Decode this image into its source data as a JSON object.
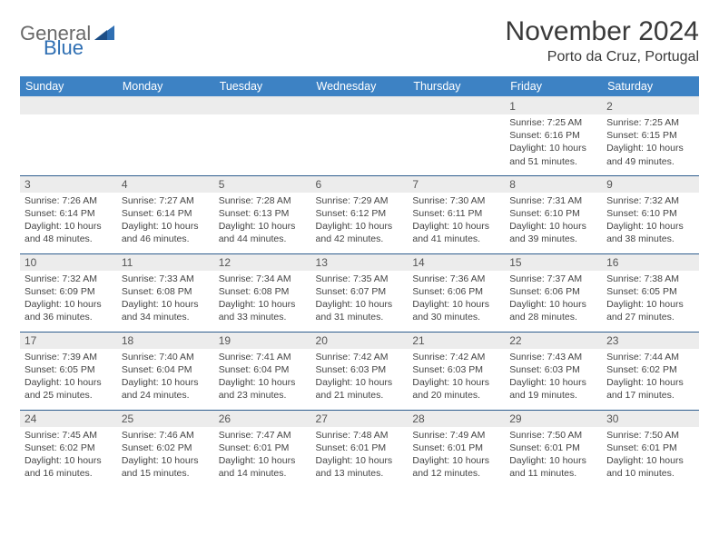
{
  "brand": {
    "part1": "General",
    "part2": "Blue"
  },
  "title": "November 2024",
  "location": "Porto da Cruz, Portugal",
  "colors": {
    "header_bg": "#3d82c4",
    "header_text": "#ffffff",
    "daynum_bg": "#ececec",
    "row_border": "#2f5e8f",
    "brand_gray": "#6a6a6a",
    "brand_blue": "#2f6fb3"
  },
  "weekdays": [
    "Sunday",
    "Monday",
    "Tuesday",
    "Wednesday",
    "Thursday",
    "Friday",
    "Saturday"
  ],
  "weeks": [
    [
      {
        "n": "",
        "sr": "",
        "ss": "",
        "dl": ""
      },
      {
        "n": "",
        "sr": "",
        "ss": "",
        "dl": ""
      },
      {
        "n": "",
        "sr": "",
        "ss": "",
        "dl": ""
      },
      {
        "n": "",
        "sr": "",
        "ss": "",
        "dl": ""
      },
      {
        "n": "",
        "sr": "",
        "ss": "",
        "dl": ""
      },
      {
        "n": "1",
        "sr": "Sunrise: 7:25 AM",
        "ss": "Sunset: 6:16 PM",
        "dl": "Daylight: 10 hours and 51 minutes."
      },
      {
        "n": "2",
        "sr": "Sunrise: 7:25 AM",
        "ss": "Sunset: 6:15 PM",
        "dl": "Daylight: 10 hours and 49 minutes."
      }
    ],
    [
      {
        "n": "3",
        "sr": "Sunrise: 7:26 AM",
        "ss": "Sunset: 6:14 PM",
        "dl": "Daylight: 10 hours and 48 minutes."
      },
      {
        "n": "4",
        "sr": "Sunrise: 7:27 AM",
        "ss": "Sunset: 6:14 PM",
        "dl": "Daylight: 10 hours and 46 minutes."
      },
      {
        "n": "5",
        "sr": "Sunrise: 7:28 AM",
        "ss": "Sunset: 6:13 PM",
        "dl": "Daylight: 10 hours and 44 minutes."
      },
      {
        "n": "6",
        "sr": "Sunrise: 7:29 AM",
        "ss": "Sunset: 6:12 PM",
        "dl": "Daylight: 10 hours and 42 minutes."
      },
      {
        "n": "7",
        "sr": "Sunrise: 7:30 AM",
        "ss": "Sunset: 6:11 PM",
        "dl": "Daylight: 10 hours and 41 minutes."
      },
      {
        "n": "8",
        "sr": "Sunrise: 7:31 AM",
        "ss": "Sunset: 6:10 PM",
        "dl": "Daylight: 10 hours and 39 minutes."
      },
      {
        "n": "9",
        "sr": "Sunrise: 7:32 AM",
        "ss": "Sunset: 6:10 PM",
        "dl": "Daylight: 10 hours and 38 minutes."
      }
    ],
    [
      {
        "n": "10",
        "sr": "Sunrise: 7:32 AM",
        "ss": "Sunset: 6:09 PM",
        "dl": "Daylight: 10 hours and 36 minutes."
      },
      {
        "n": "11",
        "sr": "Sunrise: 7:33 AM",
        "ss": "Sunset: 6:08 PM",
        "dl": "Daylight: 10 hours and 34 minutes."
      },
      {
        "n": "12",
        "sr": "Sunrise: 7:34 AM",
        "ss": "Sunset: 6:08 PM",
        "dl": "Daylight: 10 hours and 33 minutes."
      },
      {
        "n": "13",
        "sr": "Sunrise: 7:35 AM",
        "ss": "Sunset: 6:07 PM",
        "dl": "Daylight: 10 hours and 31 minutes."
      },
      {
        "n": "14",
        "sr": "Sunrise: 7:36 AM",
        "ss": "Sunset: 6:06 PM",
        "dl": "Daylight: 10 hours and 30 minutes."
      },
      {
        "n": "15",
        "sr": "Sunrise: 7:37 AM",
        "ss": "Sunset: 6:06 PM",
        "dl": "Daylight: 10 hours and 28 minutes."
      },
      {
        "n": "16",
        "sr": "Sunrise: 7:38 AM",
        "ss": "Sunset: 6:05 PM",
        "dl": "Daylight: 10 hours and 27 minutes."
      }
    ],
    [
      {
        "n": "17",
        "sr": "Sunrise: 7:39 AM",
        "ss": "Sunset: 6:05 PM",
        "dl": "Daylight: 10 hours and 25 minutes."
      },
      {
        "n": "18",
        "sr": "Sunrise: 7:40 AM",
        "ss": "Sunset: 6:04 PM",
        "dl": "Daylight: 10 hours and 24 minutes."
      },
      {
        "n": "19",
        "sr": "Sunrise: 7:41 AM",
        "ss": "Sunset: 6:04 PM",
        "dl": "Daylight: 10 hours and 23 minutes."
      },
      {
        "n": "20",
        "sr": "Sunrise: 7:42 AM",
        "ss": "Sunset: 6:03 PM",
        "dl": "Daylight: 10 hours and 21 minutes."
      },
      {
        "n": "21",
        "sr": "Sunrise: 7:42 AM",
        "ss": "Sunset: 6:03 PM",
        "dl": "Daylight: 10 hours and 20 minutes."
      },
      {
        "n": "22",
        "sr": "Sunrise: 7:43 AM",
        "ss": "Sunset: 6:03 PM",
        "dl": "Daylight: 10 hours and 19 minutes."
      },
      {
        "n": "23",
        "sr": "Sunrise: 7:44 AM",
        "ss": "Sunset: 6:02 PM",
        "dl": "Daylight: 10 hours and 17 minutes."
      }
    ],
    [
      {
        "n": "24",
        "sr": "Sunrise: 7:45 AM",
        "ss": "Sunset: 6:02 PM",
        "dl": "Daylight: 10 hours and 16 minutes."
      },
      {
        "n": "25",
        "sr": "Sunrise: 7:46 AM",
        "ss": "Sunset: 6:02 PM",
        "dl": "Daylight: 10 hours and 15 minutes."
      },
      {
        "n": "26",
        "sr": "Sunrise: 7:47 AM",
        "ss": "Sunset: 6:01 PM",
        "dl": "Daylight: 10 hours and 14 minutes."
      },
      {
        "n": "27",
        "sr": "Sunrise: 7:48 AM",
        "ss": "Sunset: 6:01 PM",
        "dl": "Daylight: 10 hours and 13 minutes."
      },
      {
        "n": "28",
        "sr": "Sunrise: 7:49 AM",
        "ss": "Sunset: 6:01 PM",
        "dl": "Daylight: 10 hours and 12 minutes."
      },
      {
        "n": "29",
        "sr": "Sunrise: 7:50 AM",
        "ss": "Sunset: 6:01 PM",
        "dl": "Daylight: 10 hours and 11 minutes."
      },
      {
        "n": "30",
        "sr": "Sunrise: 7:50 AM",
        "ss": "Sunset: 6:01 PM",
        "dl": "Daylight: 10 hours and 10 minutes."
      }
    ]
  ]
}
